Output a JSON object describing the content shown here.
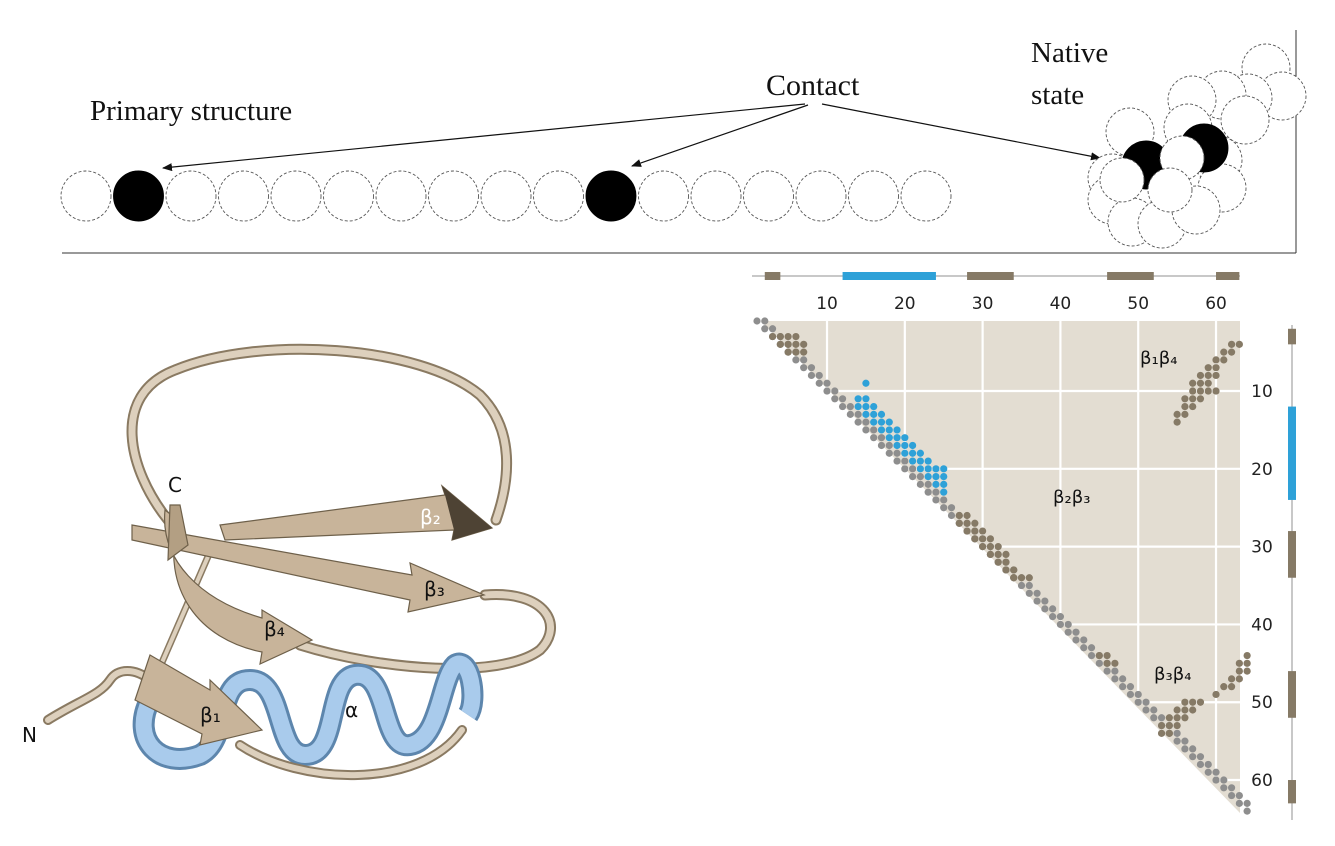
{
  "top_panel": {
    "primary_label": "Primary structure",
    "contact_label": "Contact",
    "native_label_1": "Native",
    "native_label_2": "state",
    "chain_length": 17,
    "contact_residues": [
      2,
      11
    ]
  },
  "cartoon": {
    "labels": {
      "c_terminus": "C",
      "n_terminus": "N",
      "beta1": "β₁",
      "beta2": "β₂",
      "beta3": "β₃",
      "beta4": "β₄",
      "alpha": "α"
    },
    "colors": {
      "strand": "#c8b49a",
      "helix": "#9cc4e8",
      "loop": "#ddd0bd"
    }
  },
  "contact_map": {
    "x_ticks": [
      "10",
      "20",
      "30",
      "40",
      "50",
      "60"
    ],
    "y_ticks": [
      "10",
      "20",
      "30",
      "40",
      "50",
      "60"
    ],
    "labels": {
      "b1b4": "β₁β₄",
      "b2b3": "β₂β₃",
      "b3b4": "β₃β₄"
    },
    "colors": {
      "background": "#e3ddd2",
      "diagonal": "#8e8e8e",
      "beta": "#867a66",
      "helix": "#2ea1d8",
      "grid": "#ffffff"
    },
    "residue_range": [
      1,
      64
    ],
    "secondary_structure_bars": [
      {
        "from": 2,
        "to": 4,
        "type": "beta"
      },
      {
        "from": 12,
        "to": 24,
        "type": "helix"
      },
      {
        "from": 28,
        "to": 34,
        "type": "beta"
      },
      {
        "from": 46,
        "to": 52,
        "type": "beta"
      },
      {
        "from": 60,
        "to": 63,
        "type": "beta"
      }
    ],
    "contacts": {
      "beta": [
        [
          3,
          3
        ],
        [
          4,
          3
        ],
        [
          5,
          3
        ],
        [
          6,
          3
        ],
        [
          4,
          4
        ],
        [
          5,
          4
        ],
        [
          6,
          4
        ],
        [
          7,
          4
        ],
        [
          5,
          5
        ],
        [
          6,
          5
        ],
        [
          7,
          5
        ],
        [
          62,
          4
        ],
        [
          63,
          4
        ],
        [
          61,
          5
        ],
        [
          62,
          5
        ],
        [
          60,
          6
        ],
        [
          61,
          6
        ],
        [
          59,
          7
        ],
        [
          60,
          7
        ],
        [
          58,
          8
        ],
        [
          59,
          8
        ],
        [
          60,
          8
        ],
        [
          57,
          9
        ],
        [
          58,
          9
        ],
        [
          59,
          9
        ],
        [
          57,
          10
        ],
        [
          58,
          10
        ],
        [
          59,
          10
        ],
        [
          60,
          10
        ],
        [
          56,
          11
        ],
        [
          57,
          11
        ],
        [
          58,
          11
        ],
        [
          56,
          12
        ],
        [
          57,
          12
        ],
        [
          55,
          13
        ],
        [
          56,
          13
        ],
        [
          55,
          14
        ],
        [
          27,
          26
        ],
        [
          28,
          26
        ],
        [
          27,
          27
        ],
        [
          28,
          27
        ],
        [
          29,
          27
        ],
        [
          28,
          28
        ],
        [
          29,
          28
        ],
        [
          30,
          28
        ],
        [
          29,
          29
        ],
        [
          30,
          29
        ],
        [
          31,
          29
        ],
        [
          30,
          30
        ],
        [
          31,
          30
        ],
        [
          32,
          30
        ],
        [
          31,
          31
        ],
        [
          32,
          31
        ],
        [
          33,
          31
        ],
        [
          32,
          32
        ],
        [
          33,
          32
        ],
        [
          33,
          33
        ],
        [
          34,
          33
        ],
        [
          34,
          34
        ],
        [
          34,
          34
        ],
        [
          35,
          34
        ],
        [
          36,
          34
        ],
        [
          45,
          44
        ],
        [
          46,
          44
        ],
        [
          46,
          45
        ],
        [
          47,
          45
        ],
        [
          64,
          44
        ],
        [
          63,
          45
        ],
        [
          64,
          45
        ],
        [
          63,
          46
        ],
        [
          64,
          46
        ],
        [
          62,
          47
        ],
        [
          63,
          47
        ],
        [
          61,
          48
        ],
        [
          62,
          48
        ],
        [
          60,
          49
        ],
        [
          56,
          50
        ],
        [
          57,
          50
        ],
        [
          58,
          50
        ],
        [
          55,
          51
        ],
        [
          56,
          51
        ],
        [
          57,
          51
        ],
        [
          54,
          52
        ],
        [
          55,
          52
        ],
        [
          56,
          52
        ],
        [
          53,
          53
        ],
        [
          54,
          53
        ],
        [
          55,
          53
        ],
        [
          53,
          54
        ],
        [
          54,
          54
        ]
      ],
      "helix": [
        [
          15,
          9
        ],
        [
          14,
          11
        ],
        [
          15,
          11
        ],
        [
          14,
          12
        ],
        [
          15,
          12
        ],
        [
          16,
          12
        ],
        [
          15,
          13
        ],
        [
          16,
          13
        ],
        [
          17,
          13
        ],
        [
          16,
          14
        ],
        [
          17,
          14
        ],
        [
          18,
          14
        ],
        [
          17,
          15
        ],
        [
          18,
          15
        ],
        [
          19,
          15
        ],
        [
          18,
          16
        ],
        [
          19,
          16
        ],
        [
          20,
          16
        ],
        [
          19,
          17
        ],
        [
          20,
          17
        ],
        [
          21,
          17
        ],
        [
          20,
          18
        ],
        [
          21,
          18
        ],
        [
          22,
          18
        ],
        [
          21,
          19
        ],
        [
          22,
          19
        ],
        [
          23,
          19
        ],
        [
          22,
          20
        ],
        [
          23,
          20
        ],
        [
          24,
          20
        ],
        [
          25,
          20
        ],
        [
          23,
          21
        ],
        [
          24,
          21
        ],
        [
          25,
          21
        ],
        [
          24,
          22
        ],
        [
          25,
          22
        ],
        [
          25,
          23
        ]
      ]
    }
  }
}
